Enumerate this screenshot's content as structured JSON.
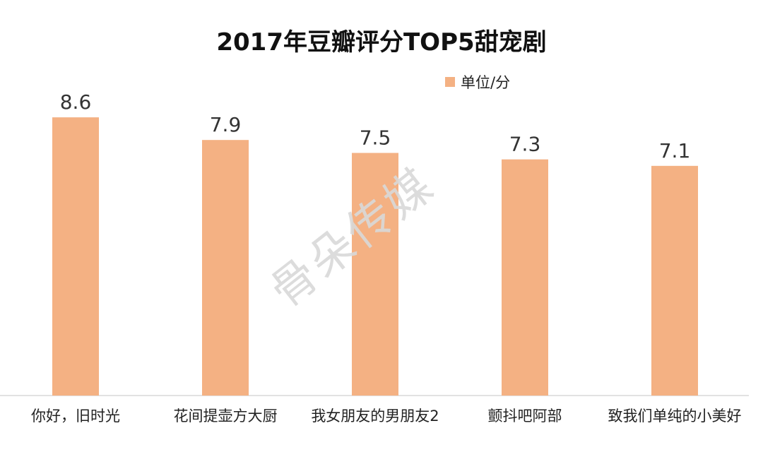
{
  "chart_data": {
    "type": "bar",
    "title": "2017年豆瓣评分TOP5甜宠剧",
    "categories": [
      "你好，旧时光",
      "花间提壶方大厨",
      "我女朋友的男朋友2",
      "颤抖吧阿部",
      "致我们单纯的小美好"
    ],
    "series": [
      {
        "name": "单位/分",
        "values": [
          8.6,
          7.9,
          7.5,
          7.3,
          7.1
        ],
        "color": "#F4B183"
      }
    ],
    "ylim": [
      0,
      10
    ],
    "grid": false,
    "legend_position": "top-right",
    "data_labels": true
  },
  "watermark": "骨朵传媒"
}
